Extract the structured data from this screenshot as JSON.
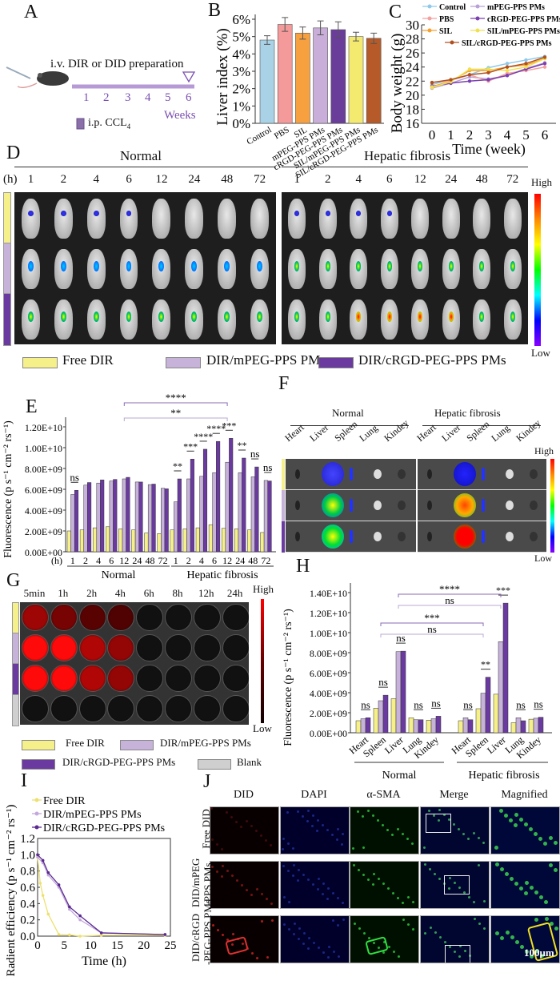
{
  "panel_letters": [
    "A",
    "B",
    "C",
    "D",
    "E",
    "F",
    "G",
    "H",
    "I",
    "J"
  ],
  "panelA": {
    "title": "i.v. DIR or DID preparation",
    "weeks": [
      "1",
      "2",
      "3",
      "4",
      "5",
      "6"
    ],
    "weeks_label": "Weeks",
    "legend": "i.p. CCL",
    "legend_sub": "4"
  },
  "panelD": {
    "groups": [
      "Normal",
      "Hepatic fibrosis"
    ],
    "hours_label": "(h)",
    "hours": [
      "1",
      "2",
      "4",
      "6",
      "12",
      "24",
      "48",
      "72"
    ],
    "scale_high": "High",
    "scale_low": "Low",
    "legend": [
      "Free DIR",
      "DIR/mPEG-PPS PMs",
      "DIR/cRGD-PEG-PPS PMs"
    ]
  },
  "panelF": {
    "groups": [
      "Normal",
      "Hepatic fibrosis"
    ],
    "organs": [
      "Heart",
      "Liver",
      "Spleen",
      "Lung",
      "Kindey"
    ],
    "scale_high": "High",
    "scale_low": "Low"
  },
  "panelG": {
    "times": [
      "5min",
      "1h",
      "2h",
      "4h",
      "6h",
      "8h",
      "12h",
      "24h"
    ],
    "scale_high": "High",
    "scale_low": "Low",
    "legend": [
      "Free DIR",
      "DIR/mPEG-PPS PMs",
      "DIR/cRGD-PEG-PPS PMs",
      "Blank"
    ]
  },
  "panelJ": {
    "columns": [
      "DID",
      "DAPI",
      "α-SMA",
      "Merge",
      "Magnified"
    ],
    "rows": [
      [
        "Free DID",
        ""
      ],
      [
        "DID/mPEG",
        "-PPS PMs"
      ],
      [
        "DID/cRGD",
        "-PEG-PPS PMs"
      ]
    ],
    "scale_bar": "100μm"
  },
  "colors": {
    "free_dir": "#f6f08a",
    "mpeg": "#c7b2da",
    "crgd": "#6a3aa0",
    "blank": "#cfcfcf",
    "bracket_light": "#b9a9cf",
    "bracket_dark": "#8a6bb3"
  },
  "chart_data": [
    {
      "id": "B",
      "type": "bar",
      "ylabel": "Liver index (%)",
      "categories": [
        "Control",
        "PBS",
        "SIL",
        "mPEG-PPS PMs",
        "cRGD-PEG-PPS PMs",
        "SIL/mPEG-PPS PMs",
        "SIL/cRGD-PEG-PPS PMs"
      ],
      "values": [
        4.8,
        5.7,
        5.2,
        5.5,
        5.4,
        5.0,
        4.9
      ],
      "errors": [
        0.25,
        0.4,
        0.35,
        0.4,
        0.45,
        0.25,
        0.3
      ],
      "colors": [
        "#a9d2e6",
        "#f59a9a",
        "#f7a040",
        "#c8aed8",
        "#6a3d9a",
        "#f5ea70",
        "#b55a28"
      ],
      "ylim": [
        0,
        6
      ],
      "yticks": [
        "0%",
        "1%",
        "2%",
        "3%",
        "4%",
        "5%",
        "6%"
      ]
    },
    {
      "id": "C",
      "type": "line",
      "xlabel": "Time (week)",
      "ylabel": "Body weight (g)",
      "x": [
        0,
        1,
        2,
        3,
        4,
        5,
        6
      ],
      "xlim": [
        0,
        6
      ],
      "ylim": [
        16,
        30
      ],
      "yticks": [
        16,
        18,
        20,
        22,
        24,
        26,
        28,
        30
      ],
      "series": [
        {
          "name": "Control",
          "color": "#8ec9ea",
          "values": [
            21.5,
            22.2,
            22.9,
            23.9,
            24.5,
            25.0,
            25.5
          ]
        },
        {
          "name": "mPEG-PPS PMs",
          "color": "#b9a0d8",
          "values": [
            21.0,
            21.7,
            22.6,
            22.3,
            22.8,
            23.8,
            24.6
          ]
        },
        {
          "name": "PBS",
          "color": "#f4a0a0",
          "values": [
            21.8,
            22.1,
            22.9,
            22.0,
            23.1,
            23.5,
            24.0
          ]
        },
        {
          "name": "cRGD-PEG-PPS PMs",
          "color": "#7a3fb0",
          "values": [
            21.3,
            21.7,
            22.0,
            22.2,
            22.8,
            23.7,
            24.5
          ]
        },
        {
          "name": "SIL",
          "color": "#f7a030",
          "values": [
            21.2,
            22.0,
            23.5,
            23.5,
            24.0,
            24.3,
            25.2
          ]
        },
        {
          "name": "SIL/mPEG-PPS PMs",
          "color": "#f0e050",
          "values": [
            21.1,
            21.9,
            23.7,
            23.7,
            23.5,
            24.0,
            25.2
          ]
        },
        {
          "name": "SIL/cRGD-PEG-PPS PMs",
          "color": "#b05020",
          "values": [
            21.8,
            22.2,
            22.9,
            23.2,
            24.0,
            24.5,
            25.4
          ]
        }
      ],
      "legend": "top"
    },
    {
      "id": "E",
      "type": "bar",
      "ylabel": "Fluorescence (p s⁻¹ cm⁻² rs⁻¹)",
      "xlabel_prefix": "(h)",
      "categories": [
        "1",
        "2",
        "4",
        "6",
        "12",
        "24",
        "48",
        "72",
        "1",
        "2",
        "4",
        "6",
        "12",
        "24",
        "48",
        "72"
      ],
      "groups": [
        "Normal",
        "Hepatic fibrosis"
      ],
      "ylim": [
        0,
        12000000000.0
      ],
      "yticks": [
        "0.00E+00",
        "2.00E+09",
        "4.00E+09",
        "6.00E+09",
        "8.00E+09",
        "1.00E+10",
        "1.20E+10"
      ],
      "series": [
        {
          "name": "Free DIR",
          "values": [
            2000000000.0,
            2100000000.0,
            2300000000.0,
            2400000000.0,
            2200000000.0,
            2100000000.0,
            1800000000.0,
            1750000000.0,
            2100000000.0,
            2200000000.0,
            2300000000.0,
            2600000000.0,
            2250000000.0,
            2200000000.0,
            2100000000.0,
            1850000000.0
          ]
        },
        {
          "name": "DIR/mPEG-PPS PMs",
          "values": [
            5500000000.0,
            6400000000.0,
            6600000000.0,
            6800000000.0,
            7000000000.0,
            6700000000.0,
            6450000000.0,
            6100000000.0,
            4800000000.0,
            7000000000.0,
            7250000000.0,
            7600000000.0,
            8600000000.0,
            7600000000.0,
            7200000000.0,
            6850000000.0
          ]
        },
        {
          "name": "DIR/cRGD-PEG-PPS PMs",
          "values": [
            5900000000.0,
            6650000000.0,
            6900000000.0,
            6950000000.0,
            7150000000.0,
            6700000000.0,
            6500000000.0,
            6050000000.0,
            7000000000.0,
            8900000000.0,
            9850000000.0,
            10600000000.0,
            10900000000.0,
            9000000000.0,
            8150000000.0,
            6800000000.0
          ]
        }
      ],
      "significance": [
        "ns",
        "",
        "",
        "",
        "",
        "",
        "",
        "",
        "**",
        "***",
        "****",
        "****",
        "***",
        "**",
        "ns",
        "ns"
      ],
      "brackets": [
        {
          "from": 4,
          "to": 12,
          "label": "****"
        },
        {
          "from": 4,
          "to": 12,
          "label": "**"
        }
      ]
    },
    {
      "id": "H",
      "type": "bar",
      "ylabel": "Fluorescence (p s⁻¹ cm⁻² rs⁻¹)",
      "categories": [
        "Heart",
        "Spleen",
        "Liver",
        "Lung",
        "Kindey",
        "Heart",
        "Spleen",
        "Liver",
        "Lung",
        "Kindey"
      ],
      "groups": [
        "Normal",
        "Hepatic fibrosis"
      ],
      "ylim": [
        0,
        14000000000.0
      ],
      "yticks": [
        "0.00E+00",
        "2.00E+09",
        "4.00E+09",
        "6.00E+09",
        "8.00E+09",
        "1.00E+10",
        "1.20E+10",
        "1.40E+10"
      ],
      "series": [
        {
          "name": "Free DIR",
          "values": [
            1200000000.0,
            2450000000.0,
            3400000000.0,
            1500000000.0,
            1250000000.0,
            1200000000.0,
            2400000000.0,
            3850000000.0,
            1000000000.0,
            1350000000.0
          ]
        },
        {
          "name": "DIR/mPEG-PPS PMs",
          "values": [
            1400000000.0,
            3200000000.0,
            8100000000.0,
            1300000000.0,
            1400000000.0,
            1500000000.0,
            3950000000.0,
            9100000000.0,
            1500000000.0,
            1450000000.0
          ]
        },
        {
          "name": "DIR/cRGD-PEG-PPS PMs",
          "values": [
            1500000000.0,
            3750000000.0,
            8150000000.0,
            1300000000.0,
            1650000000.0,
            1300000000.0,
            5550000000.0,
            12950000000.0,
            1200000000.0,
            1550000000.0
          ]
        }
      ],
      "significance": [
        "ns",
        "ns",
        "ns",
        "ns",
        "ns",
        "ns",
        "**",
        "***",
        "ns",
        "ns"
      ],
      "brackets": [
        {
          "from": 2,
          "to": 7,
          "label": "****"
        },
        {
          "from": 2,
          "to": 7,
          "label": "ns"
        },
        {
          "from": 1,
          "to": 6,
          "label": "***"
        },
        {
          "from": 1,
          "to": 6,
          "label": "ns"
        }
      ]
    },
    {
      "id": "I",
      "type": "line",
      "xlabel": "Time (h)",
      "ylabel": "Radient efficiency (p s⁻¹ cm⁻² rs⁻¹)",
      "xlim": [
        0,
        25
      ],
      "ylim": [
        0,
        1.2
      ],
      "xticks": [
        0,
        5,
        10,
        15,
        20,
        25
      ],
      "yticks": [
        "0.0",
        "0.2",
        "0.4",
        "0.6",
        "0.8",
        "1.0",
        "1.2"
      ],
      "series": [
        {
          "name": "Free DIR",
          "color": "#ece070",
          "x": [
            0,
            0.5,
            1,
            2,
            4,
            6,
            8,
            12,
            24
          ],
          "values": [
            0.97,
            0.65,
            0.5,
            0.27,
            0.02,
            0.015,
            0.0,
            0.01,
            0.01
          ]
        },
        {
          "name": "DIR/mPEG-PPS PMs",
          "color": "#c4a8dc",
          "x": [
            0,
            1,
            2,
            4,
            6,
            8,
            12,
            24
          ],
          "values": [
            0.97,
            0.9,
            0.75,
            0.6,
            0.33,
            0.2,
            0.04,
            0.02
          ]
        },
        {
          "name": "DIR/cRGD-PEG-PPS PMs",
          "color": "#5a2a90",
          "x": [
            0,
            1,
            2,
            4,
            6,
            8,
            12,
            24
          ],
          "values": [
            1.0,
            0.93,
            0.78,
            0.63,
            0.36,
            0.25,
            0.04,
            0.02
          ]
        }
      ],
      "legend": "top-left"
    }
  ]
}
